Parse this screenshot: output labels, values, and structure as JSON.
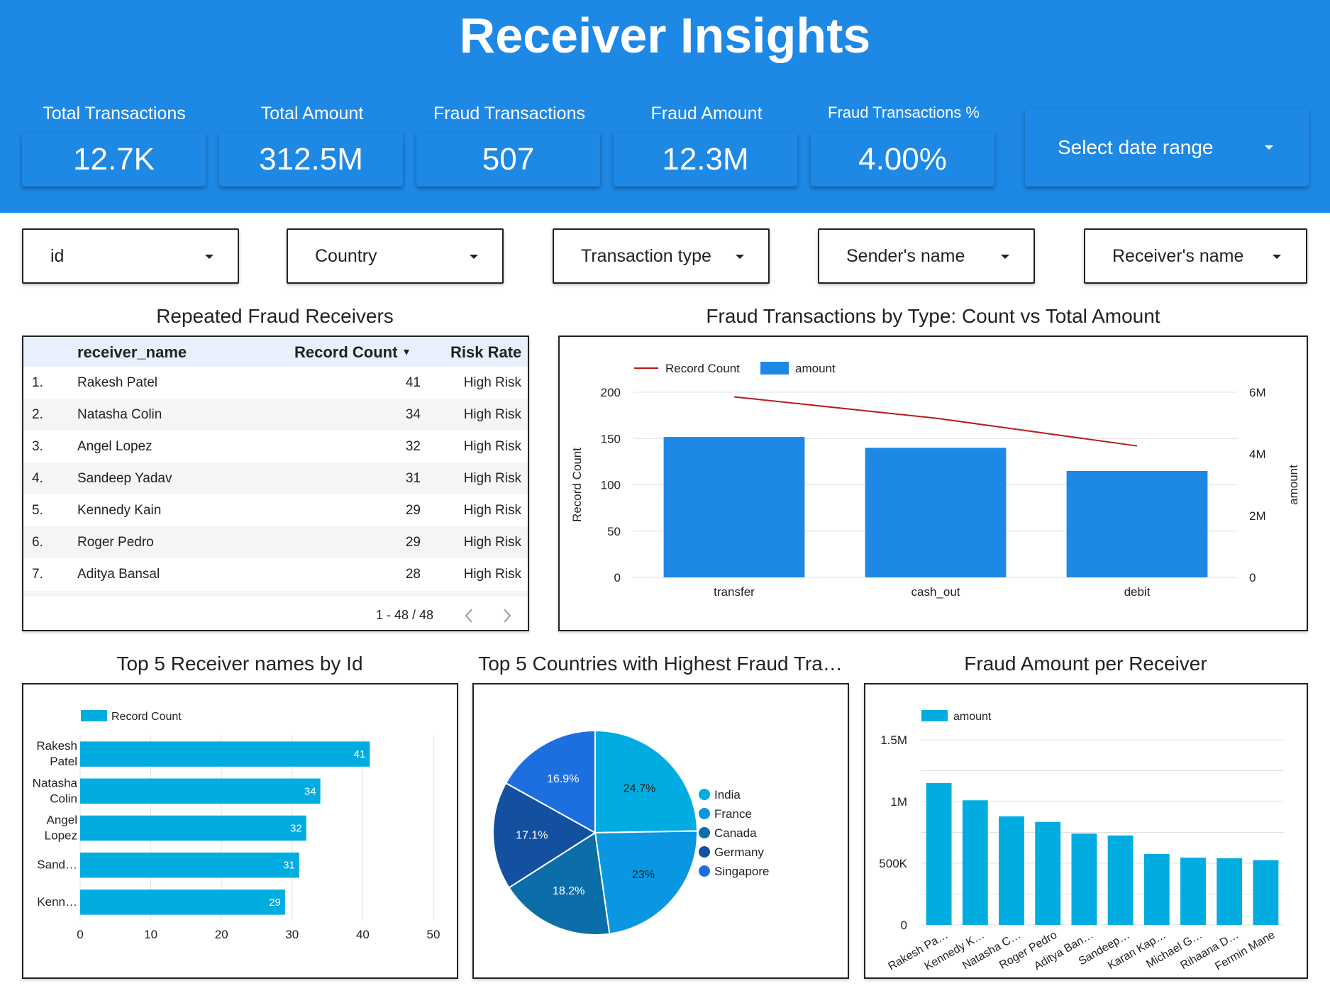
{
  "header": {
    "title": "Receiver Insights",
    "kpis": [
      {
        "label": "Total Transactions",
        "value": "12.7K"
      },
      {
        "label": "Total Amount",
        "value": "312.5M"
      },
      {
        "label": "Fraud Transactions",
        "value": "507"
      },
      {
        "label": "Fraud Amount",
        "value": "12.3M"
      },
      {
        "label": "Fraud Transactions %",
        "value": "4.00%"
      }
    ],
    "date_range_label": "Select date range"
  },
  "filters": [
    "id",
    "Country",
    "Transaction type",
    "Sender's name",
    "Receiver's name"
  ],
  "table": {
    "title": "Repeated Fraud Receivers",
    "columns": [
      "receiver_name",
      "Record Count",
      "Risk Rate"
    ],
    "sort_indicator": "▾",
    "rows": [
      {
        "idx": "1.",
        "name": "Rakesh Patel",
        "count": "41",
        "risk": "High Risk"
      },
      {
        "idx": "2.",
        "name": "Natasha Colin",
        "count": "34",
        "risk": "High Risk"
      },
      {
        "idx": "3.",
        "name": "Angel Lopez",
        "count": "32",
        "risk": "High Risk"
      },
      {
        "idx": "4.",
        "name": "Sandeep Yadav",
        "count": "31",
        "risk": "High Risk"
      },
      {
        "idx": "5.",
        "name": "Kennedy Kain",
        "count": "29",
        "risk": "High Risk"
      },
      {
        "idx": "6.",
        "name": "Roger Pedro",
        "count": "29",
        "risk": "High Risk"
      },
      {
        "idx": "7.",
        "name": "Aditya Bansal",
        "count": "28",
        "risk": "High Risk"
      }
    ],
    "pagination": "1 - 48 / 48"
  },
  "chart_data": [
    {
      "type": "bar",
      "title": "Fraud Transactions by Type: Count vs Total Amount",
      "categories": [
        "transfer",
        "cash_out",
        "debit"
      ],
      "series": [
        {
          "name": "amount",
          "kind": "bar",
          "axis": "right",
          "values": [
            4550000,
            4200000,
            3450000
          ]
        },
        {
          "name": "Record Count",
          "kind": "line",
          "axis": "left",
          "values": [
            195,
            172,
            142
          ]
        }
      ],
      "ylabel": "Record Count",
      "ylabel_right": "amount",
      "ylim": [
        0,
        200
      ],
      "ylim_right": [
        0,
        6000000
      ],
      "yticks": [
        "0",
        "50",
        "100",
        "150",
        "200"
      ],
      "yticks_right": [
        "0",
        "2M",
        "4M",
        "6M"
      ],
      "colors": {
        "bar": "#1e88e5",
        "line": "#b71c1c"
      },
      "legend": "top-left",
      "grid": true
    },
    {
      "type": "bar",
      "orientation": "horizontal",
      "title": "Top 5 Receiver names by Id",
      "categories": [
        [
          "Rakesh",
          "Patel"
        ],
        [
          "Natasha",
          "Colin"
        ],
        [
          "Angel",
          "Lopez"
        ],
        [
          "Sand…"
        ],
        [
          "Kenn…"
        ]
      ],
      "series": [
        {
          "name": "Record Count",
          "values": [
            41,
            34,
            32,
            31,
            29
          ]
        }
      ],
      "xlim": [
        0,
        50
      ],
      "xticks": [
        "0",
        "10",
        "20",
        "30",
        "40",
        "50"
      ],
      "colors": {
        "bar": "#00ace0"
      },
      "legend": "top-left",
      "grid": true
    },
    {
      "type": "pie",
      "title": "Top 5 Countries with Highest Fraud Tra…",
      "labels": [
        "India",
        "France",
        "Canada",
        "Germany",
        "Singapore"
      ],
      "values": [
        24.7,
        23,
        18.2,
        17.1,
        16.9
      ],
      "value_labels": [
        "24.7%",
        "23%",
        "18.2%",
        "17.1%",
        "16.9%"
      ],
      "colors": [
        "#00ace0",
        "#0a97e2",
        "#0b6ea8",
        "#1450a0",
        "#1d6fe0"
      ],
      "legend": "right"
    },
    {
      "type": "bar",
      "title": "Fraud Amount per Receiver",
      "categories": [
        "Rakesh Pa…",
        "Kennedy K…",
        "Natasha C…",
        "Roger Pedro",
        "Aditya Ban…",
        "Sandeep…",
        "Karan Kap…",
        "Michael G…",
        "Rihaana D…",
        "Fermin Mane"
      ],
      "series": [
        {
          "name": "amount",
          "values": [
            1150000,
            1010000,
            880000,
            835000,
            740000,
            725000,
            575000,
            545000,
            540000,
            525000
          ]
        }
      ],
      "ylim": [
        0,
        1500000
      ],
      "yticks": [
        "0",
        "500K",
        "1M",
        "1.5M"
      ],
      "colors": {
        "bar": "#00ace0"
      },
      "legend": "top-left",
      "grid": true
    }
  ]
}
